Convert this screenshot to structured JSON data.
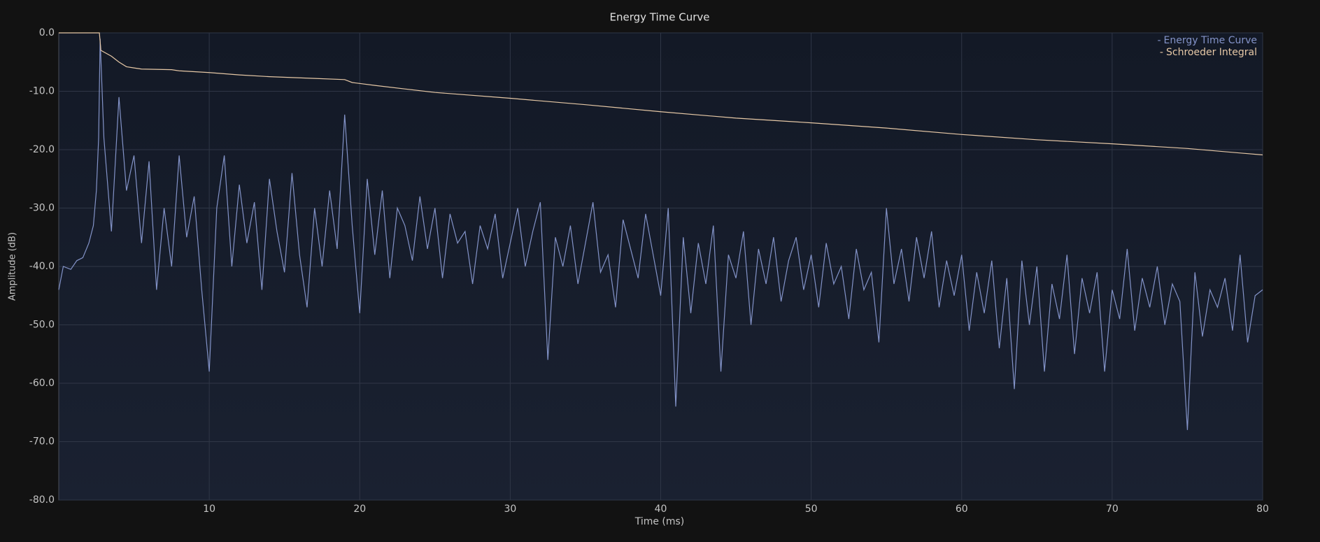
{
  "chart_data": {
    "type": "line",
    "title": "Energy Time Curve",
    "xlabel": "Time (ms)",
    "ylabel": "Amplitude (dB)",
    "xlim": [
      0,
      80
    ],
    "ylim": [
      -80,
      0
    ],
    "xticks": [
      10,
      20,
      30,
      40,
      50,
      60,
      70,
      80
    ],
    "yticks": [
      {
        "value": 0,
        "label": "0.0"
      },
      {
        "value": -10,
        "label": "-10.0"
      },
      {
        "value": -20,
        "label": "-20.0"
      },
      {
        "value": -30,
        "label": "-30.0"
      },
      {
        "value": -40,
        "label": "-40.0"
      },
      {
        "value": -50,
        "label": "-50.0"
      },
      {
        "value": -60,
        "label": "-60.0"
      },
      {
        "value": -70,
        "label": "-70.0"
      },
      {
        "value": -80,
        "label": "-80.0"
      }
    ],
    "grid": true,
    "legend": "top-right",
    "series": [
      {
        "name": "Energy Time Curve",
        "color": "#8393c8",
        "x": [
          0,
          0.3,
          0.8,
          1.2,
          1.6,
          2.0,
          2.3,
          2.5,
          2.65,
          2.75,
          3,
          3.5,
          4,
          4.5,
          5,
          5.5,
          6,
          6.5,
          7,
          7.5,
          8,
          8.5,
          9,
          9.5,
          10,
          10.5,
          11,
          11.5,
          12,
          12.5,
          13,
          13.5,
          14,
          14.5,
          15,
          15.5,
          16,
          16.5,
          17,
          17.5,
          18,
          18.5,
          19,
          19.5,
          20,
          20.5,
          21,
          21.5,
          22,
          22.5,
          23,
          23.5,
          24,
          24.5,
          25,
          25.5,
          26,
          26.5,
          27,
          27.5,
          28,
          28.5,
          29,
          29.5,
          30,
          30.5,
          31,
          31.5,
          32,
          32.5,
          33,
          33.5,
          34,
          34.5,
          35,
          35.5,
          36,
          36.5,
          37,
          37.5,
          38,
          38.5,
          39,
          39.5,
          40,
          40.5,
          41,
          41.5,
          42,
          42.5,
          43,
          43.5,
          44,
          44.5,
          45,
          45.5,
          46,
          46.5,
          47,
          47.5,
          48,
          48.5,
          49,
          49.5,
          50,
          50.5,
          51,
          51.5,
          52,
          52.5,
          53,
          53.5,
          54,
          54.5,
          55,
          55.5,
          56,
          56.5,
          57,
          57.5,
          58,
          58.5,
          59,
          59.5,
          60,
          60.5,
          61,
          61.5,
          62,
          62.5,
          63,
          63.5,
          64,
          64.5,
          65,
          65.5,
          66,
          66.5,
          67,
          67.5,
          68,
          68.5,
          69,
          69.5,
          70,
          70.5,
          71,
          71.5,
          72,
          72.5,
          73,
          73.5,
          74,
          74.5,
          75,
          75.5,
          76,
          76.5,
          77,
          77.5,
          78,
          78.5,
          79,
          79.5,
          80
        ],
        "values": [
          -44,
          -40,
          -40.5,
          -39,
          -38.5,
          -36,
          -33,
          -27,
          -18,
          -1,
          -18,
          -34,
          -11,
          -27,
          -21,
          -36,
          -22,
          -44,
          -30,
          -40,
          -21,
          -35,
          -28,
          -44,
          -58,
          -30,
          -21,
          -40,
          -26,
          -36,
          -29,
          -44,
          -25,
          -34,
          -41,
          -24,
          -38,
          -47,
          -30,
          -40,
          -27,
          -37,
          -14,
          -33,
          -48,
          -25,
          -38,
          -27,
          -42,
          -30,
          -33,
          -39,
          -28,
          -37,
          -30,
          -42,
          -31,
          -36,
          -34,
          -43,
          -33,
          -37,
          -31,
          -42,
          -36,
          -30,
          -40,
          -34,
          -29,
          -56,
          -35,
          -40,
          -33,
          -43,
          -36,
          -29,
          -41,
          -38,
          -47,
          -32,
          -37,
          -42,
          -31,
          -38,
          -45,
          -30,
          -64,
          -35,
          -48,
          -36,
          -43,
          -33,
          -58,
          -38,
          -42,
          -34,
          -50,
          -37,
          -43,
          -35,
          -46,
          -39,
          -35,
          -44,
          -38,
          -47,
          -36,
          -43,
          -40,
          -49,
          -37,
          -44,
          -41,
          -53,
          -30,
          -43,
          -37,
          -46,
          -35,
          -42,
          -34,
          -47,
          -39,
          -45,
          -38,
          -51,
          -41,
          -48,
          -39,
          -54,
          -42,
          -61,
          -39,
          -50,
          -40,
          -58,
          -43,
          -49,
          -38,
          -55,
          -42,
          -48,
          -41,
          -58,
          -44,
          -49,
          -37,
          -51,
          -42,
          -47,
          -40,
          -50,
          -43,
          -46,
          -68,
          -41,
          -52,
          -44,
          -47,
          -42,
          -51,
          -38,
          -53,
          -45,
          -44
        ]
      },
      {
        "name": "Schroeder Integral",
        "color": "#e6c8a6",
        "x": [
          0,
          2.7,
          2.8,
          3.5,
          4,
          4.5,
          5,
          5.5,
          7.5,
          8,
          10,
          12,
          14,
          17,
          19,
          19.5,
          21,
          23,
          25,
          30,
          35,
          40,
          45,
          50,
          55,
          60,
          65,
          70,
          75,
          80
        ],
        "values": [
          0,
          0,
          -3,
          -4,
          -5,
          -5.8,
          -6,
          -6.2,
          -6.3,
          -6.5,
          -6.8,
          -7.2,
          -7.5,
          -7.8,
          -8,
          -8.5,
          -9,
          -9.6,
          -10.2,
          -11.2,
          -12.3,
          -13.5,
          -14.6,
          -15.4,
          -16.3,
          -17.4,
          -18.3,
          -19,
          -19.8,
          -20.9
        ]
      }
    ]
  }
}
